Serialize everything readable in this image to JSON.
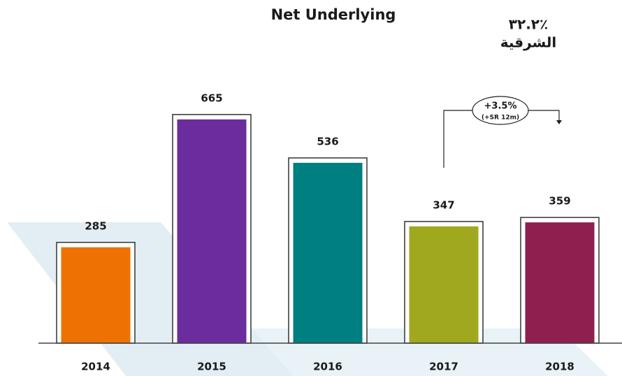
{
  "chart_data": {
    "type": "bar",
    "title": "Net Underlying",
    "corner_texts": [
      "٪٣٢.٢",
      "الشرقية"
    ],
    "annotation": {
      "text": "+3.5%",
      "subtext": "(+SR 12m)"
    },
    "categories": [
      "2014",
      "2015",
      "2016",
      "2017",
      "2018"
    ],
    "values": [
      285,
      665,
      536,
      347,
      359
    ],
    "colors": [
      "#ee7203",
      "#6b2c9e",
      "#007f80",
      "#a0a81e",
      "#8e1f4f"
    ],
    "ylim": [
      0,
      700
    ]
  }
}
